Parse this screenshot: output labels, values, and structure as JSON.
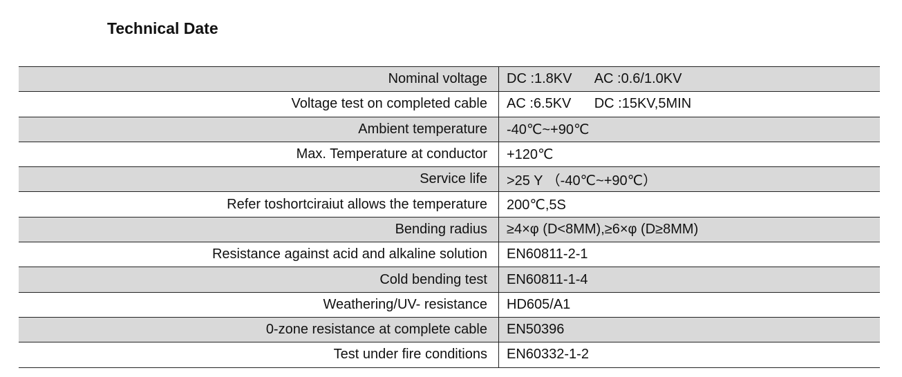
{
  "header": {
    "title": "Technical Date"
  },
  "table": {
    "rows": [
      [
        "Nominal voltage",
        "DC :1.8KV      AC :0.6/1.0KV"
      ],
      [
        "Voltage test on completed cable",
        "AC :6.5KV      DC :15KV,5MIN"
      ],
      [
        "Ambient temperature",
        "-40℃~+90℃"
      ],
      [
        "Max. Temperature at conductor",
        "+120℃"
      ],
      [
        "Service life",
        ">25 Y （-40℃~+90℃）"
      ],
      [
        "Refer toshortciraiut allows the temperature",
        "200℃,5S"
      ],
      [
        "Bending radius",
        "≥4×φ (D<8MM),≥6×φ (D≥8MM)"
      ],
      [
        "Resistance against acid and alkaline solution",
        "EN60811-2-1"
      ],
      [
        "Cold bending test",
        "EN60811-1-4"
      ],
      [
        "Weathering/UV- resistance",
        "HD605/A1"
      ],
      [
        "0-zone resistance at complete cable",
        "EN50396"
      ],
      [
        "Test under fire conditions",
        "EN60332-1-2"
      ]
    ]
  }
}
